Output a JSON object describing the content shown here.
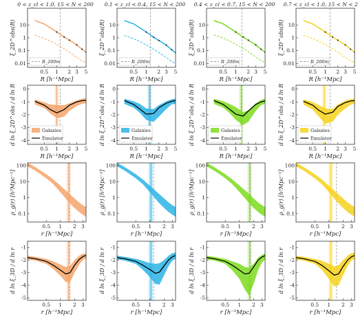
{
  "figure": {
    "colors": {
      "orange": "#f4a46a",
      "blue": "#2bb4e6",
      "green": "#7ddc1f",
      "yellow": "#f6d21c",
      "model": "#000000",
      "dashed_ref": "#9a9a9a"
    }
  },
  "chart_data": [
    {
      "type": "line",
      "titles": [
        "0 < z_cl < 1.0, 15 < N < 200",
        "0.1 < z_cl < 0.4, 15 < N < 200",
        "0.4 < z_cl < 0.7, 15 < N < 200",
        "0.7 < z_cl < 1.0, 15 < N < 200"
      ],
      "ylabel": "ξ_2D^obs(R)",
      "xlabel": "R [h⁻¹Mpc]",
      "xscale": "log",
      "yscale": "log",
      "xlim": [
        0.2,
        5
      ],
      "ylim": [
        0.005,
        200
      ],
      "xticks": [
        "0.5",
        "1",
        "2",
        "3",
        "5"
      ],
      "yticks": [
        "0.01",
        "0.1",
        "1",
        "10"
      ],
      "legend": "R_200m",
      "legend_position": "lower-left",
      "vline_R": [
        1.2,
        1.25,
        1.4,
        1.3
      ],
      "x": [
        0.3,
        0.5,
        0.7,
        1.0,
        1.5,
        2.0,
        3.0,
        4.0,
        5.0
      ],
      "series": [
        {
          "values": [
            22,
            12,
            6.0,
            2.8,
            1.15,
            0.65,
            0.28,
            0.13,
            0.075
          ],
          "dashed": [
            1.6,
            0.9,
            0.55,
            0.3,
            0.14,
            0.075,
            0.03,
            0.016,
            0.011
          ]
        },
        {
          "values": [
            22,
            12,
            6.0,
            2.8,
            1.1,
            0.62,
            0.27,
            0.12,
            0.07
          ],
          "dashed": [
            1.5,
            0.85,
            0.5,
            0.28,
            0.13,
            0.07,
            0.029,
            0.015,
            0.01
          ]
        },
        {
          "values": [
            22,
            12,
            6.0,
            2.8,
            1.15,
            0.65,
            0.28,
            0.13,
            0.075
          ],
          "dashed": [
            1.7,
            0.95,
            0.58,
            0.3,
            0.15,
            0.08,
            0.032,
            0.017,
            0.012
          ]
        },
        {
          "values": [
            22,
            12,
            6.0,
            2.8,
            1.15,
            0.65,
            0.28,
            0.13,
            0.075
          ],
          "dashed": [
            1.6,
            0.9,
            0.55,
            0.3,
            0.14,
            0.075,
            0.03,
            0.016,
            0.011
          ]
        }
      ]
    },
    {
      "type": "line",
      "ylabel": "d ln ξ_2D^obs / d ln R",
      "xlabel": "R [h⁻¹Mpc]",
      "xscale": "log",
      "xlim": [
        0.2,
        5
      ],
      "ylim": [
        -4.3,
        0.3
      ],
      "xticks": [
        "0.5",
        "1",
        "2",
        "3",
        "5"
      ],
      "yticks": [
        "0",
        "-1",
        "-2",
        "-3",
        "-4"
      ],
      "legend": [
        "Galaxies",
        "Emulator"
      ],
      "legend_position": "lower-left",
      "vline_R": [
        1.2,
        1.25,
        1.4,
        1.3
      ],
      "band_center": [
        1.0,
        1.2,
        1.35,
        0.95
      ],
      "x": [
        0.3,
        0.5,
        0.7,
        1.0,
        1.5,
        2.0,
        3.0,
        4.0,
        5.0
      ],
      "series": [
        {
          "values": [
            -1.0,
            -1.25,
            -1.55,
            -1.75,
            -1.7,
            -1.4,
            -1.1,
            -0.95,
            -0.9
          ],
          "band": [
            0.2,
            0.22,
            0.35,
            0.5,
            0.45,
            0.3,
            0.22,
            0.2,
            0.2
          ]
        },
        {
          "values": [
            -0.95,
            -1.2,
            -1.5,
            -1.95,
            -2.05,
            -1.7,
            -1.25,
            -1.0,
            -0.95
          ],
          "band": [
            0.2,
            0.25,
            0.35,
            0.45,
            0.5,
            0.45,
            0.3,
            0.2,
            0.2
          ]
        },
        {
          "values": [
            -0.95,
            -1.2,
            -1.5,
            -1.9,
            -2.3,
            -2.1,
            -1.4,
            -1.05,
            -0.95
          ],
          "band": [
            0.2,
            0.25,
            0.35,
            0.5,
            0.5,
            0.45,
            0.3,
            0.2,
            0.2
          ]
        },
        {
          "values": [
            -1.0,
            -1.3,
            -1.7,
            -2.1,
            -2.05,
            -1.6,
            -1.2,
            -1.0,
            -0.95
          ],
          "band": [
            0.2,
            0.3,
            0.45,
            0.6,
            0.5,
            0.4,
            0.3,
            0.22,
            0.2
          ]
        }
      ],
      "model": [
        [
          -0.95,
          -1.25,
          -1.6,
          -1.85,
          -1.6,
          -1.25,
          -1.0,
          -0.9,
          -0.88
        ],
        [
          -0.9,
          -1.2,
          -1.55,
          -1.95,
          -1.9,
          -1.45,
          -1.1,
          -0.95,
          -0.9
        ],
        [
          -0.9,
          -1.2,
          -1.55,
          -1.95,
          -2.1,
          -1.7,
          -1.2,
          -1.0,
          -0.92
        ],
        [
          -0.95,
          -1.25,
          -1.65,
          -1.95,
          -1.8,
          -1.35,
          -1.05,
          -0.93,
          -0.9
        ]
      ]
    },
    {
      "type": "line",
      "ylabel": "ρ_g(r) [h³Mpc⁻³]",
      "xlabel": "r [h⁻¹Mpc]",
      "xscale": "log",
      "yscale": "log",
      "xlim": [
        0.2,
        3.5
      ],
      "ylim": [
        0.03,
        150
      ],
      "xticks": [
        "0.5",
        "1",
        "2",
        "3"
      ],
      "yticks": [
        "0.1",
        "1",
        "10",
        "100"
      ],
      "vline_r": [
        1.55,
        1.2,
        1.7,
        1.45
      ],
      "band_center": [
        1.5,
        1.05,
        1.65,
        1.1
      ],
      "x": [
        0.2,
        0.3,
        0.5,
        0.7,
        1.0,
        1.5,
        2.0,
        2.5,
        3.0,
        3.5
      ],
      "series": [
        {
          "values": [
            120,
            60,
            22,
            10,
            3.5,
            1.0,
            0.45,
            0.25,
            0.17,
            0.13
          ],
          "band_factor": [
            1.3,
            1.3,
            1.35,
            1.4,
            1.6,
            1.9,
            2.0,
            2.0,
            2.0,
            2.0
          ]
        },
        {
          "values": [
            120,
            60,
            22,
            10,
            3.5,
            1.0,
            0.45,
            0.25,
            0.17,
            0.13
          ],
          "band_factor": [
            1.3,
            1.3,
            1.35,
            1.4,
            1.6,
            1.9,
            2.0,
            2.0,
            2.0,
            2.0
          ]
        },
        {
          "values": [
            120,
            60,
            22,
            10,
            3.6,
            1.1,
            0.45,
            0.25,
            0.17,
            0.13
          ],
          "band_factor": [
            1.3,
            1.3,
            1.35,
            1.4,
            1.6,
            1.9,
            2.0,
            2.0,
            2.0,
            2.0
          ]
        },
        {
          "values": [
            120,
            60,
            22,
            10,
            3.5,
            1.0,
            0.45,
            0.25,
            0.17,
            0.13
          ],
          "band_factor": [
            1.3,
            1.3,
            1.35,
            1.4,
            1.6,
            1.9,
            2.0,
            2.0,
            2.0,
            2.0
          ]
        }
      ]
    },
    {
      "type": "line",
      "ylabel": "d ln ξ_3D / d ln r",
      "xlabel": "r [h⁻¹Mpc]",
      "xscale": "log",
      "xlim": [
        0.2,
        3.5
      ],
      "ylim": [
        -5.2,
        -0.5
      ],
      "xticks": [
        "0.5",
        "1",
        "2",
        "3"
      ],
      "yticks": [
        "-1",
        "-2",
        "-3",
        "-4",
        "-5"
      ],
      "vline_r": [
        1.55,
        1.2,
        1.7,
        1.45
      ],
      "band_center": [
        1.5,
        1.05,
        1.65,
        1.1
      ],
      "x": [
        0.2,
        0.3,
        0.5,
        0.7,
        1.0,
        1.3,
        1.6,
        2.0,
        2.5,
        3.0,
        3.5
      ],
      "series": [
        {
          "values": [
            -1.8,
            -1.9,
            -2.1,
            -2.4,
            -2.8,
            -3.15,
            -3.1,
            -2.5,
            -2.0,
            -1.75,
            -1.65
          ],
          "band": [
            0.15,
            0.15,
            0.2,
            0.3,
            0.45,
            0.6,
            0.65,
            0.5,
            0.35,
            0.25,
            0.2
          ]
        },
        {
          "values": [
            -1.8,
            -1.9,
            -2.1,
            -2.4,
            -2.8,
            -3.1,
            -3.1,
            -2.6,
            -2.05,
            -1.75,
            -1.65
          ],
          "band": [
            0.15,
            0.15,
            0.2,
            0.35,
            0.55,
            0.8,
            0.85,
            0.6,
            0.4,
            0.3,
            0.25
          ]
        },
        {
          "values": [
            -1.8,
            -1.9,
            -2.1,
            -2.45,
            -2.9,
            -3.45,
            -3.7,
            -3.1,
            -2.3,
            -1.9,
            -1.7
          ],
          "band": [
            0.15,
            0.15,
            0.2,
            0.35,
            0.6,
            0.9,
            1.1,
            0.8,
            0.5,
            0.3,
            0.25
          ]
        },
        {
          "values": [
            -1.8,
            -1.9,
            -2.1,
            -2.4,
            -2.9,
            -3.3,
            -3.2,
            -2.6,
            -2.05,
            -1.75,
            -1.65
          ],
          "band": [
            0.15,
            0.15,
            0.2,
            0.35,
            0.6,
            0.8,
            0.8,
            0.6,
            0.4,
            0.3,
            0.25
          ]
        }
      ],
      "model": [
        [
          -1.8,
          -1.9,
          -2.1,
          -2.4,
          -2.8,
          -3.1,
          -3.0,
          -2.4,
          -1.95,
          -1.72,
          -1.62
        ],
        [
          -1.8,
          -1.9,
          -2.1,
          -2.4,
          -2.75,
          -3.05,
          -2.95,
          -2.45,
          -1.98,
          -1.74,
          -1.63
        ],
        [
          -1.8,
          -1.9,
          -2.1,
          -2.4,
          -2.8,
          -3.1,
          -3.05,
          -2.55,
          -2.0,
          -1.76,
          -1.64
        ],
        [
          -1.8,
          -1.9,
          -2.1,
          -2.4,
          -2.85,
          -3.2,
          -3.1,
          -2.5,
          -2.0,
          -1.74,
          -1.63
        ]
      ]
    }
  ]
}
